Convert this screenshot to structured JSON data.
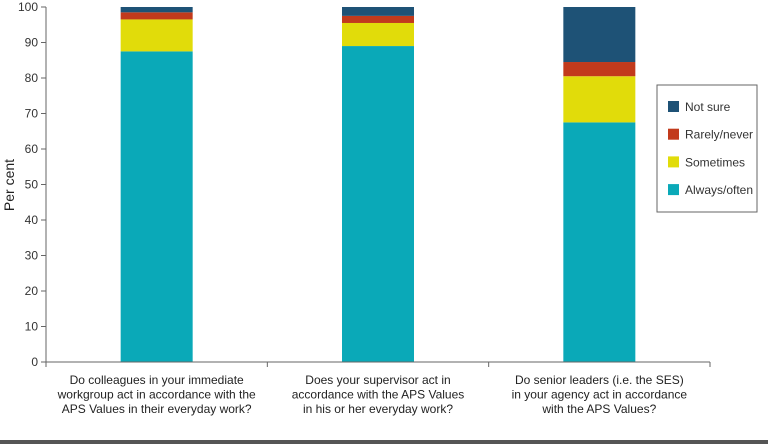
{
  "chart_data": {
    "type": "bar",
    "stacked": true,
    "ylabel": "Per cent",
    "ylim": [
      0,
      100
    ],
    "yticks": [
      0,
      10,
      20,
      30,
      40,
      50,
      60,
      70,
      80,
      90,
      100
    ],
    "categories": [
      [
        "Do colleagues in your immediate",
        "workgroup  act in accordance with the",
        "APS Values in their everyday work?"
      ],
      [
        "Does your supervisor act in",
        "accordance with the APS Values",
        "in his or her everyday work?"
      ],
      [
        "Do senior leaders (i.e. the SES)",
        "in your agency act in accordance",
        "with the APS Values?"
      ]
    ],
    "series": [
      {
        "name": "Always/often",
        "color": "#0aa9b8",
        "values": [
          87.5,
          89,
          67.5
        ]
      },
      {
        "name": "Sometimes",
        "color": "#e1dc0a",
        "values": [
          9,
          6.5,
          13
        ]
      },
      {
        "name": "Rarely/never",
        "color": "#c23a1c",
        "values": [
          2,
          2,
          4
        ]
      },
      {
        "name": "Not sure",
        "color": "#1e5276",
        "values": [
          1.5,
          2.5,
          15.5
        ]
      }
    ],
    "legend": {
      "position": "right",
      "order": [
        "Not sure",
        "Rarely/never",
        "Sometimes",
        "Always/often"
      ]
    }
  }
}
